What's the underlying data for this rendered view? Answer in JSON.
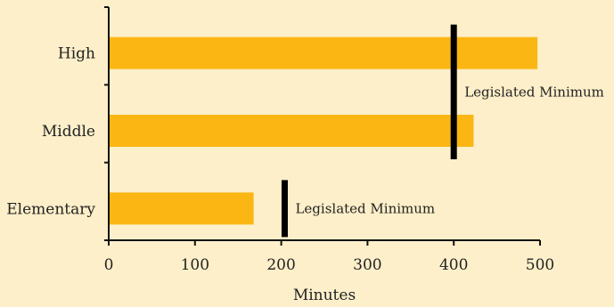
{
  "chart_data": {
    "type": "bar",
    "orientation": "horizontal",
    "categories": [
      "High",
      "Middle",
      "Elementary"
    ],
    "values": [
      497,
      423,
      168
    ],
    "xlabel": "Minutes",
    "xlim": [
      0,
      500
    ],
    "xticks": [
      0,
      100,
      200,
      300,
      400,
      500
    ],
    "grid": false,
    "legend": "none",
    "colors": {
      "background": "#fdefc9",
      "bar": "#fbb614",
      "marker": "#000000",
      "axis": "#111111",
      "text": "#222222"
    },
    "reference_lines": [
      {
        "label": "Legislated Minimum",
        "value": 400,
        "categories": [
          "High",
          "Middle"
        ]
      },
      {
        "label": "Legislated Minimum",
        "value": 204,
        "categories": [
          "Elementary"
        ]
      }
    ]
  }
}
